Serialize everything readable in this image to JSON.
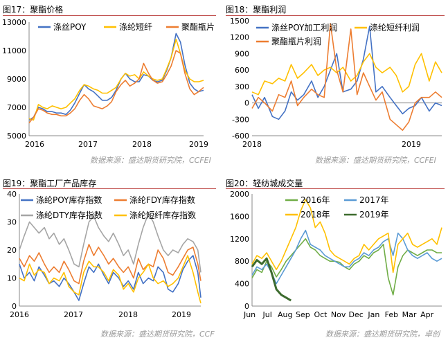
{
  "panels": {
    "p17": {
      "title": "图17：聚酯价格",
      "source": "数据来源：盛达期货研究院，CCFEI"
    },
    "p18": {
      "title": "图18：聚酯利润",
      "source": "数据来源：盛达期货研究院，CCFEI"
    },
    "p19": {
      "title": "图19：聚酯工厂产品库存",
      "source": "数据来源：盛达期货研究院，CCF"
    },
    "p20": {
      "title": "图20：轻纺城成交量",
      "source": "数据来源：盛达期货研究院，卓创"
    }
  },
  "chart_data": [
    {
      "type": "line",
      "xlabels": [
        "2016",
        "2017",
        "2018",
        "2019"
      ],
      "x": [
        2016.0,
        2016.08,
        2016.17,
        2016.25,
        2016.33,
        2016.42,
        2016.5,
        2016.58,
        2016.67,
        2016.75,
        2016.83,
        2016.92,
        2017.0,
        2017.08,
        2017.17,
        2017.25,
        2017.33,
        2017.42,
        2017.5,
        2017.58,
        2017.67,
        2017.75,
        2017.83,
        2017.92,
        2018.0,
        2018.08,
        2018.17,
        2018.25,
        2018.33,
        2018.42,
        2018.5,
        2018.58,
        2018.67,
        2018.75,
        2018.83,
        2018.92,
        2019.0,
        2019.08,
        2019.17
      ],
      "ylim": [
        5000,
        13000
      ],
      "yticks": [
        5000,
        7000,
        9000,
        11000,
        13000
      ],
      "series": [
        {
          "name": "涤丝POY",
          "color": "#4472c4",
          "values": [
            6100,
            6300,
            7000,
            6900,
            6700,
            6700,
            6600,
            6600,
            6500,
            6800,
            7300,
            8000,
            8600,
            8300,
            8100,
            7800,
            7500,
            7500,
            7700,
            8200,
            9000,
            9400,
            9000,
            8800,
            8800,
            9300,
            9200,
            8900,
            8800,
            8900,
            9600,
            10500,
            12200,
            11600,
            10000,
            8700,
            8300,
            8100,
            8200
          ]
        },
        {
          "name": "涤纶短纤",
          "color": "#ffc000",
          "values": [
            6200,
            6100,
            7200,
            7000,
            6900,
            7100,
            7000,
            6900,
            7000,
            7300,
            7600,
            8200,
            8600,
            8500,
            8300,
            8200,
            8000,
            8000,
            8200,
            8400,
            9000,
            9400,
            9200,
            9300,
            9000,
            9500,
            9200,
            9000,
            8900,
            9000,
            9700,
            10500,
            11800,
            10800,
            9600,
            9000,
            8800,
            8800,
            8900
          ]
        },
        {
          "name": "聚酯瓶片",
          "color": "#ed7d31",
          "values": [
            5900,
            6300,
            6900,
            6800,
            6600,
            6500,
            6500,
            6400,
            6400,
            6600,
            6900,
            7500,
            7900,
            7600,
            7100,
            7000,
            6900,
            7100,
            7400,
            8100,
            8600,
            8900,
            8500,
            8700,
            9000,
            10100,
            9400,
            8900,
            8700,
            8800,
            9300,
            9900,
            11000,
            10800,
            9400,
            8300,
            7900,
            8100,
            8400
          ]
        }
      ]
    },
    {
      "type": "line",
      "xlabels": [
        "2018",
        "2019"
      ],
      "x": [
        2018.0,
        2018.04,
        2018.08,
        2018.13,
        2018.17,
        2018.21,
        2018.25,
        2018.29,
        2018.33,
        2018.38,
        2018.42,
        2018.46,
        2018.5,
        2018.54,
        2018.58,
        2018.63,
        2018.67,
        2018.71,
        2018.75,
        2018.79,
        2018.83,
        2018.88,
        2018.92,
        2018.96,
        2019.0,
        2019.04,
        2019.08,
        2019.13,
        2019.17,
        2019.21
      ],
      "ylim": [
        -600,
        1500
      ],
      "yticks": [
        -600,
        -300,
        0,
        300,
        600,
        900,
        1200,
        1500
      ],
      "series": [
        {
          "name": "涤丝POY加工利润",
          "color": "#4472c4",
          "values": [
            150,
            -100,
            100,
            -250,
            -300,
            -150,
            200,
            50,
            150,
            400,
            100,
            300,
            600,
            900,
            200,
            250,
            400,
            800,
            1400,
            200,
            300,
            100,
            -50,
            -200,
            -100,
            -50,
            100,
            -150,
            0,
            -50
          ]
        },
        {
          "name": "涤纶短纤利润",
          "color": "#ffc000",
          "values": [
            200,
            150,
            400,
            350,
            450,
            400,
            700,
            450,
            550,
            700,
            500,
            600,
            650,
            550,
            650,
            400,
            500,
            750,
            900,
            650,
            550,
            650,
            500,
            200,
            300,
            700,
            900,
            400,
            750,
            550
          ]
        },
        {
          "name": "聚酯瓶片利润",
          "color": "#ed7d31",
          "values": [
            -100,
            100,
            0,
            -150,
            150,
            100,
            400,
            -50,
            100,
            250,
            150,
            100,
            1450,
            600,
            200,
            1350,
            150,
            550,
            300,
            50,
            200,
            -300,
            -400,
            -500,
            -350,
            0,
            100,
            100,
            200,
            100
          ]
        }
      ]
    },
    {
      "type": "line",
      "xlabels": [
        "2016",
        "2017",
        "2018",
        "2019"
      ],
      "x": [
        2016.0,
        2016.08,
        2016.17,
        2016.25,
        2016.33,
        2016.42,
        2016.5,
        2016.58,
        2016.67,
        2016.75,
        2016.83,
        2016.92,
        2017.0,
        2017.08,
        2017.17,
        2017.25,
        2017.33,
        2017.42,
        2017.5,
        2017.58,
        2017.67,
        2017.75,
        2017.83,
        2017.92,
        2018.0,
        2018.08,
        2018.17,
        2018.25,
        2018.33,
        2018.42,
        2018.5,
        2018.58,
        2018.67,
        2018.75,
        2018.83,
        2018.92,
        2019.0,
        2019.05
      ],
      "ylim": [
        0,
        40
      ],
      "yticks": [
        0,
        10,
        20,
        30,
        40
      ],
      "series": [
        {
          "name": "涤纶POY库存指数",
          "color": "#4472c4",
          "values": [
            15,
            10,
            12,
            9,
            14,
            11,
            8,
            9,
            7,
            10,
            8,
            5,
            2,
            8,
            14,
            12,
            15,
            11,
            8,
            12,
            10,
            7,
            9,
            6,
            12,
            8,
            10,
            9,
            14,
            12,
            6,
            5,
            8,
            13,
            16,
            18,
            12,
            3
          ]
        },
        {
          "name": "涤纶FDY库存指数",
          "color": "#ed7d31",
          "values": [
            17,
            14,
            18,
            16,
            19,
            15,
            12,
            14,
            12,
            16,
            13,
            9,
            8,
            16,
            22,
            18,
            21,
            18,
            15,
            17,
            14,
            12,
            14,
            10,
            17,
            13,
            15,
            14,
            20,
            17,
            12,
            11,
            14,
            17,
            20,
            21,
            15,
            9
          ]
        },
        {
          "name": "涤纶DTY库存指数",
          "color": "#a5a5a5",
          "values": [
            20,
            25,
            30,
            28,
            26,
            28,
            24,
            26,
            22,
            24,
            20,
            15,
            14,
            22,
            30,
            32,
            28,
            25,
            23,
            26,
            22,
            18,
            20,
            15,
            22,
            28,
            33,
            30,
            25,
            20,
            18,
            20,
            19,
            22,
            24,
            23,
            20,
            12
          ]
        },
        {
          "name": "涤纶短纤库存指数",
          "color": "#ffc000",
          "values": [
            10,
            9,
            15,
            11,
            13,
            12,
            8,
            10,
            9,
            12,
            7,
            5,
            4,
            12,
            16,
            14,
            14,
            12,
            9,
            13,
            11,
            6,
            8,
            5,
            10,
            12,
            15,
            10,
            8,
            9,
            7,
            8,
            10,
            14,
            18,
            12,
            5,
            1
          ]
        }
      ]
    },
    {
      "type": "line",
      "xlabels": [
        "Jun",
        "Jul",
        "Aug",
        "Sep",
        "Oct",
        "Nov",
        "Dec",
        "Jan",
        "Feb",
        "Mar",
        "Apr"
      ],
      "ylim": [
        0,
        2000
      ],
      "yticks": [
        0,
        400,
        800,
        1200,
        1600,
        2000
      ],
      "series": [
        {
          "name": "2016年",
          "color": "#70ad47",
          "values": [
            500,
            650,
            600,
            800,
            700,
            520,
            650,
            800,
            900,
            1000,
            1100,
            1200,
            1050,
            1000,
            900,
            850,
            800,
            800,
            780,
            700,
            650,
            750,
            800,
            900,
            850,
            950,
            1000,
            1100,
            500,
            200,
            700,
            900,
            1000,
            950,
            900,
            950,
            1000,
            1000,
            950,
            950
          ]
        },
        {
          "name": "2017年",
          "color": "#5b9bd5",
          "values": [
            550,
            700,
            650,
            750,
            600,
            400,
            550,
            700,
            850,
            1000,
            1200,
            1350,
            1100,
            1050,
            1000,
            900,
            850,
            800,
            750,
            700,
            700,
            800,
            850,
            950,
            900,
            1000,
            1050,
            1150,
            1200,
            900,
            1300,
            1200,
            1000,
            900,
            850,
            900,
            950,
            850,
            800,
            850
          ]
        },
        {
          "name": "2018年",
          "color": "#ffc000",
          "values": [
            750,
            900,
            850,
            950,
            800,
            650,
            800,
            1000,
            1200,
            1400,
            1700,
            1900,
            1750,
            1400,
            1500,
            1300,
            1000,
            900,
            850,
            800,
            750,
            850,
            900,
            1100,
            1000,
            1100,
            1200,
            1250,
            1300,
            600,
            1100,
            1200,
            1300,
            1100,
            1050,
            1100,
            1150,
            1200,
            1100,
            1400
          ]
        },
        {
          "name": "2019年",
          "color": "#3d6b2e",
          "values": [
            700,
            820,
            750,
            850,
            600,
            300,
            200,
            150,
            100
          ]
        }
      ]
    }
  ]
}
